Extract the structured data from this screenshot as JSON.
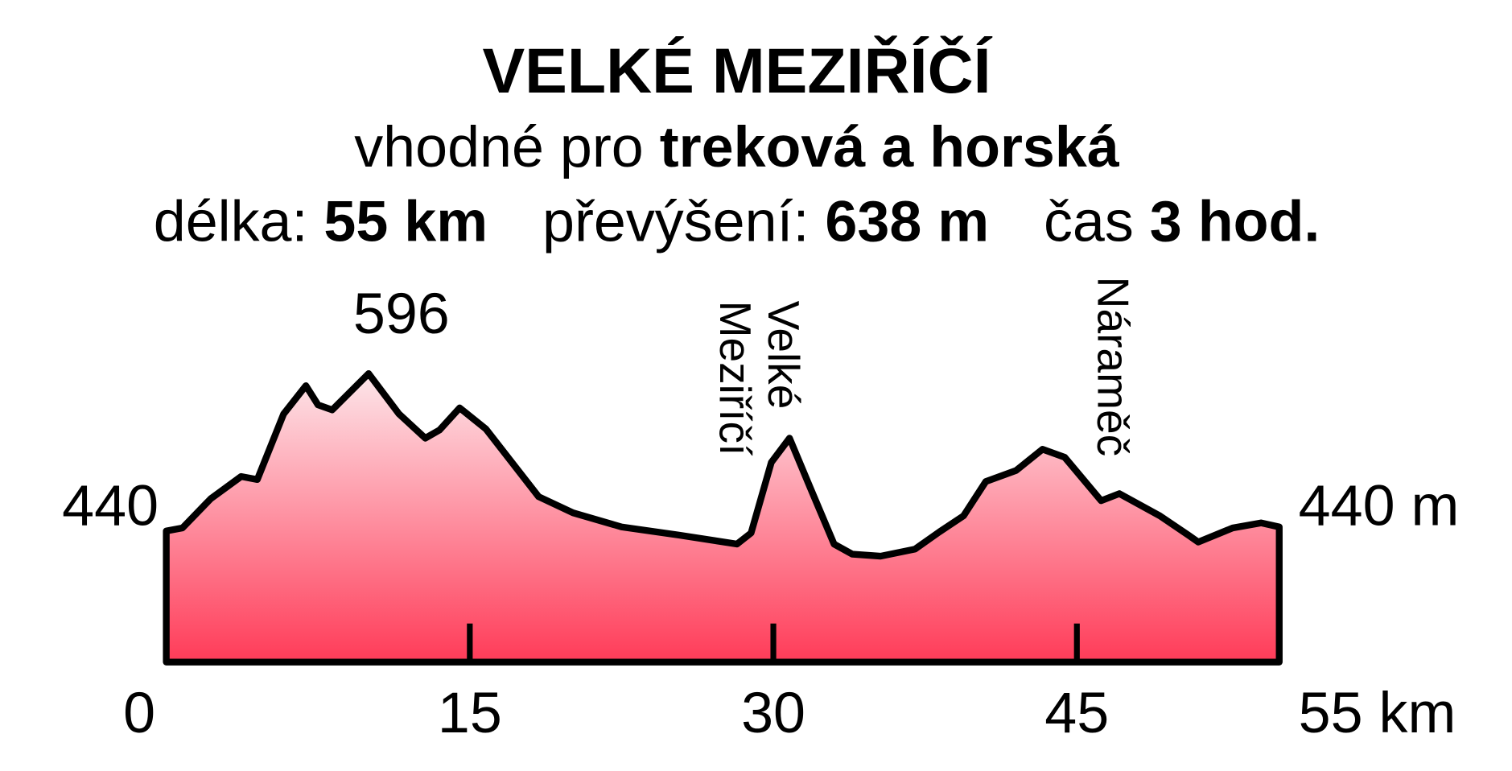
{
  "chart_data": {
    "type": "area",
    "title": "VELKÉ MEZIŘÍČÍ",
    "subtitle": [
      "vhodné pro",
      "treková a horská"
    ],
    "stats": [
      {
        "label": "délka:",
        "value": "55 km"
      },
      {
        "label": "převýšení:",
        "value": "638 m"
      },
      {
        "label": "čas",
        "value": "3 hod."
      }
    ],
    "x": [
      0,
      0.8,
      2.2,
      3.7,
      4.5,
      5.8,
      6.9,
      7.5,
      8.2,
      10,
      11.5,
      12.8,
      13.5,
      14.5,
      15.8,
      18.4,
      20.1,
      22.5,
      25.3,
      28.2,
      28.9,
      29.9,
      30.8,
      31.8,
      33,
      33.9,
      35.3,
      37,
      38.2,
      39.4,
      40.5,
      42,
      43.3,
      44.4,
      46.2,
      47.1,
      49.1,
      50.5,
      51,
      52.7,
      54.1,
      55
    ],
    "values": [
      440,
      443,
      472,
      494,
      491,
      556,
      584,
      565,
      560,
      596,
      556,
      532,
      540,
      562,
      541,
      474,
      458,
      444,
      436,
      427,
      438,
      508,
      532,
      484,
      427,
      417,
      415,
      422,
      439,
      455,
      489,
      500,
      521,
      513,
      470,
      477,
      455,
      436,
      429,
      443,
      448,
      444
    ],
    "color_top": "#fde6ea",
    "color_bottom": "#ff3b58",
    "xlim": [
      0,
      55
    ],
    "ylim": [
      310,
      610
    ],
    "xticks": [
      0,
      15,
      30,
      45,
      {
        "value": 55,
        "label": "55 km"
      }
    ],
    "yticks_left": [
      440
    ],
    "yticks_right": [
      {
        "value": 440,
        "label": "440 m"
      }
    ],
    "annotations": [
      {
        "lines": [
          "596"
        ],
        "x": 10,
        "y": 596,
        "rotated": false
      },
      {
        "lines": [
          "Velké",
          "Meziříčí"
        ],
        "x": 30.8,
        "y": 532,
        "rotated": true
      },
      {
        "lines": [
          "Náraměč"
        ],
        "x": 47.1,
        "y": 477,
        "rotated": true
      }
    ]
  }
}
